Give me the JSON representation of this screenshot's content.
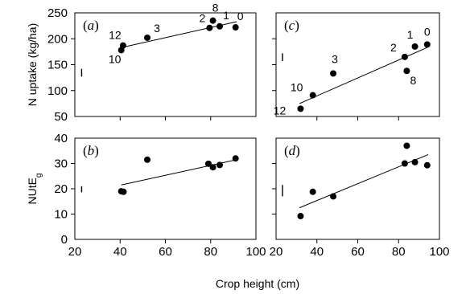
{
  "chart_data": {
    "type": "scatter",
    "xlabel": "Crop height (cm)",
    "panels": [
      {
        "id": "a",
        "letter": "a",
        "ylabel": "N uptake (kg/ha)",
        "xlim": [
          20,
          100
        ],
        "ylim": [
          50,
          250
        ],
        "xticks": [
          20,
          40,
          60,
          80,
          100
        ],
        "yticks": [
          50,
          100,
          150,
          200,
          250
        ],
        "show_xtick_labels": false,
        "show_ytick_labels": true,
        "points": [
          {
            "x": 40.5,
            "y": 178,
            "label": "10"
          },
          {
            "x": 41.3,
            "y": 187,
            "label": "12"
          },
          {
            "x": 52.0,
            "y": 202,
            "label": "3"
          },
          {
            "x": 79.5,
            "y": 221,
            "label": "2"
          },
          {
            "x": 81.0,
            "y": 235,
            "label": "8"
          },
          {
            "x": 84.0,
            "y": 224,
            "label": "1"
          },
          {
            "x": 91.0,
            "y": 222,
            "label": "0"
          }
        ],
        "fit": [
          [
            40.5,
            183
          ],
          [
            91.5,
            233
          ]
        ],
        "error_bar": {
          "x": 23,
          "y_low": 127,
          "y_high": 142
        }
      },
      {
        "id": "c",
        "letter": "c",
        "ylabel": "",
        "xlim": [
          20,
          100
        ],
        "ylim": [
          50,
          250
        ],
        "xticks": [
          20,
          40,
          60,
          80,
          100
        ],
        "yticks": [
          50,
          100,
          150,
          200,
          250
        ],
        "show_xtick_labels": false,
        "show_ytick_labels": false,
        "points": [
          {
            "x": 32.0,
            "y": 65,
            "label": "12"
          },
          {
            "x": 38.0,
            "y": 91,
            "label": "10"
          },
          {
            "x": 48.0,
            "y": 133,
            "label": "3"
          },
          {
            "x": 83.0,
            "y": 165,
            "label": "2"
          },
          {
            "x": 84.0,
            "y": 138,
            "label": "8"
          },
          {
            "x": 88.0,
            "y": 185,
            "label": "1"
          },
          {
            "x": 94.0,
            "y": 189,
            "label": "0"
          }
        ],
        "fit": [
          [
            31.5,
            75
          ],
          [
            94.5,
            184
          ]
        ],
        "error_bar": {
          "x": 23,
          "y_low": 157,
          "y_high": 172
        }
      },
      {
        "id": "b",
        "letter": "b",
        "ylabel": "NUtE",
        "ylabel_sub": "g",
        "xlim": [
          20,
          100
        ],
        "ylim": [
          0,
          40
        ],
        "xticks": [
          20,
          40,
          60,
          80,
          100
        ],
        "yticks": [
          0,
          10,
          20,
          30,
          40
        ],
        "show_xtick_labels": true,
        "show_ytick_labels": true,
        "points": [
          {
            "x": 40.5,
            "y": 19.0
          },
          {
            "x": 41.5,
            "y": 18.8
          },
          {
            "x": 52.0,
            "y": 31.5
          },
          {
            "x": 79.0,
            "y": 29.9
          },
          {
            "x": 81.0,
            "y": 28.5
          },
          {
            "x": 84.0,
            "y": 29.4
          },
          {
            "x": 91.0,
            "y": 32.0
          }
        ],
        "fit": [
          [
            40.5,
            21.5
          ],
          [
            91.5,
            31.5
          ]
        ],
        "error_bar": {
          "x": 23,
          "y_low": 18.6,
          "y_high": 21.0
        }
      },
      {
        "id": "d",
        "letter": "d",
        "ylabel": "",
        "xlim": [
          20,
          100
        ],
        "ylim": [
          0,
          40
        ],
        "xticks": [
          20,
          40,
          60,
          80,
          100
        ],
        "yticks": [
          0,
          10,
          20,
          30,
          40
        ],
        "show_xtick_labels": true,
        "show_ytick_labels": false,
        "points": [
          {
            "x": 32.0,
            "y": 9.2
          },
          {
            "x": 38.0,
            "y": 18.8
          },
          {
            "x": 48.0,
            "y": 17.0
          },
          {
            "x": 83.0,
            "y": 30.0
          },
          {
            "x": 84.0,
            "y": 37.0
          },
          {
            "x": 88.0,
            "y": 30.5
          },
          {
            "x": 94.0,
            "y": 29.3
          }
        ],
        "fit": [
          [
            31.5,
            12.5
          ],
          [
            94.5,
            33.5
          ]
        ],
        "error_bar": {
          "x": 23,
          "y_low": 17.0,
          "y_high": 21.5
        }
      }
    ]
  }
}
